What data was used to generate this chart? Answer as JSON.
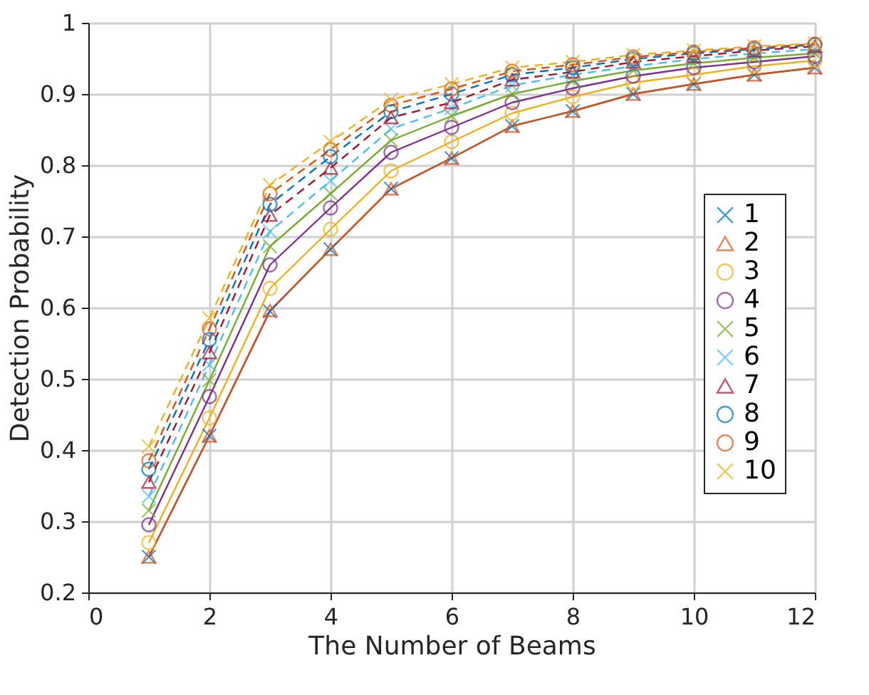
{
  "chart_data": {
    "type": "line",
    "xlabel": "The Number of Beams",
    "ylabel": "Detection Probability",
    "x": [
      1,
      2,
      3,
      4,
      5,
      6,
      7,
      8,
      9,
      10,
      11,
      12
    ],
    "xlim": [
      0,
      12
    ],
    "xticks": [
      0,
      2,
      4,
      6,
      8,
      10,
      12
    ],
    "ylim": [
      0.2,
      1
    ],
    "yticks": [
      0.2,
      0.3,
      0.4,
      0.5,
      0.6,
      0.7,
      0.8,
      0.9,
      {
        "value": 1,
        "label": "1"
      }
    ],
    "grid": true,
    "legend": "right",
    "series": [
      {
        "name": "1",
        "color": "#0072bd",
        "marker": "cross",
        "line_style": "solid",
        "values": [
          0.25,
          0.42,
          0.595,
          0.682,
          0.767,
          0.81,
          0.855,
          0.876,
          0.9,
          0.914,
          0.927,
          0.937
        ]
      },
      {
        "name": "2",
        "color": "#d95319",
        "marker": "triangle",
        "line_style": "solid",
        "values": [
          0.25,
          0.42,
          0.596,
          0.682,
          0.767,
          0.81,
          0.855,
          0.876,
          0.9,
          0.914,
          0.927,
          0.937
        ]
      },
      {
        "name": "3",
        "color": "#edb120",
        "marker": "circle",
        "line_style": "solid",
        "values": [
          0.27,
          0.445,
          0.627,
          0.71,
          0.792,
          0.833,
          0.873,
          0.896,
          0.916,
          0.927,
          0.939,
          0.947
        ]
      },
      {
        "name": "4",
        "color": "#7e2f8e",
        "marker": "circle",
        "line_style": "solid",
        "values": [
          0.295,
          0.475,
          0.66,
          0.74,
          0.818,
          0.853,
          0.888,
          0.908,
          0.925,
          0.937,
          0.945,
          0.953
        ]
      },
      {
        "name": "5",
        "color": "#77ac30",
        "marker": "cross",
        "line_style": "solid",
        "values": [
          0.315,
          0.498,
          0.686,
          0.76,
          0.835,
          0.869,
          0.9,
          0.918,
          0.933,
          0.943,
          0.951,
          0.957
        ]
      },
      {
        "name": "6",
        "color": "#4dbeee",
        "marker": "cross",
        "line_style": "dashed",
        "values": [
          0.335,
          0.52,
          0.707,
          0.778,
          0.851,
          0.88,
          0.912,
          0.927,
          0.939,
          0.949,
          0.957,
          0.963
        ]
      },
      {
        "name": "7",
        "color": "#a2142f",
        "marker": "triangle",
        "line_style": "dashed",
        "values": [
          0.355,
          0.537,
          0.73,
          0.796,
          0.867,
          0.888,
          0.92,
          0.931,
          0.945,
          0.953,
          0.961,
          0.967
        ]
      },
      {
        "name": "8",
        "color": "#0072bd",
        "marker": "circle",
        "line_style": "dashed",
        "values": [
          0.373,
          0.555,
          0.745,
          0.812,
          0.875,
          0.9,
          0.927,
          0.937,
          0.949,
          0.957,
          0.963,
          0.969
        ]
      },
      {
        "name": "9",
        "color": "#d95319",
        "marker": "circle",
        "line_style": "dashed",
        "values": [
          0.385,
          0.57,
          0.76,
          0.822,
          0.884,
          0.907,
          0.932,
          0.941,
          0.952,
          0.959,
          0.965,
          0.97
        ]
      },
      {
        "name": "10",
        "color": "#edb120",
        "marker": "cross",
        "line_style": "dashed",
        "values": [
          0.405,
          0.585,
          0.772,
          0.833,
          0.892,
          0.914,
          0.937,
          0.945,
          0.955,
          0.961,
          0.967,
          0.971
        ]
      }
    ]
  }
}
